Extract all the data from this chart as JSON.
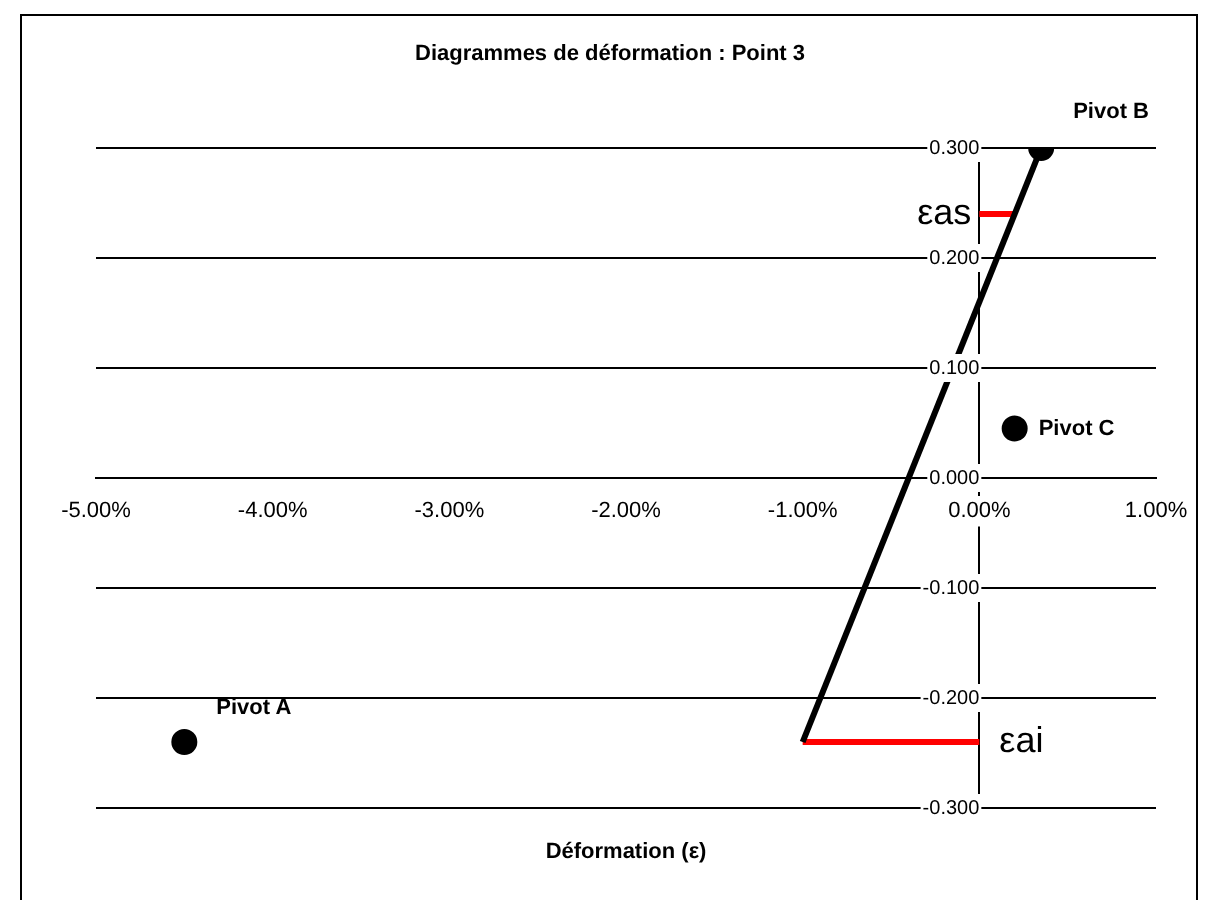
{
  "chart_data": {
    "type": "scatter",
    "title": "Diagrammes de déformation : Point 3",
    "xlabel": "Déformation (ε)",
    "xlim": [
      -5,
      1
    ],
    "xticks": [
      {
        "value": -5,
        "label": "-5.00%"
      },
      {
        "value": -4,
        "label": "-4.00%"
      },
      {
        "value": -3,
        "label": "-3.00%"
      },
      {
        "value": -2,
        "label": "-2.00%"
      },
      {
        "value": -1,
        "label": "-1.00%"
      },
      {
        "value": 0,
        "label": "0.00%"
      },
      {
        "value": 1,
        "label": "1.00%"
      }
    ],
    "ylim": [
      -0.3,
      0.3
    ],
    "yticks": [
      {
        "value": -0.3,
        "label": "-0.300"
      },
      {
        "value": -0.2,
        "label": "-0.200"
      },
      {
        "value": -0.1,
        "label": "-0.100"
      },
      {
        "value": 0,
        "label": "0.000"
      },
      {
        "value": 0.1,
        "label": "0.100"
      },
      {
        "value": 0.2,
        "label": "0.200"
      },
      {
        "value": 0.3,
        "label": "0.300"
      }
    ],
    "grid": "y",
    "legend": false,
    "series": [
      {
        "type": "line",
        "color": "#000000",
        "x": [
          -1,
          0.35
        ],
        "values": [
          -0.24,
          0.3
        ],
        "marker": "none"
      },
      {
        "type": "line",
        "color": "#ff0000",
        "x": [
          0,
          0.2
        ],
        "values": [
          0.24,
          0.24
        ],
        "marker": "none"
      },
      {
        "type": "line",
        "color": "#ff0000",
        "x": [
          -1,
          0
        ],
        "values": [
          -0.24,
          -0.24
        ],
        "marker": "none"
      },
      {
        "color": "#000000",
        "x": [
          -4.5,
          0.35,
          0.2
        ],
        "values": [
          -0.24,
          0.3,
          0.045
        ],
        "marker": "circle"
      }
    ],
    "annotations": [
      {
        "text": "Pivot A",
        "x": -4.5,
        "y": -0.24
      },
      {
        "text": "Pivot B",
        "x": 0.35,
        "y": 0.3
      },
      {
        "text": "Pivot C",
        "x": 0.2,
        "y": 0.045
      },
      {
        "text": "εas",
        "x": 0,
        "y": 0.24
      },
      {
        "text": "εai",
        "x": 0,
        "y": -0.24
      }
    ]
  }
}
